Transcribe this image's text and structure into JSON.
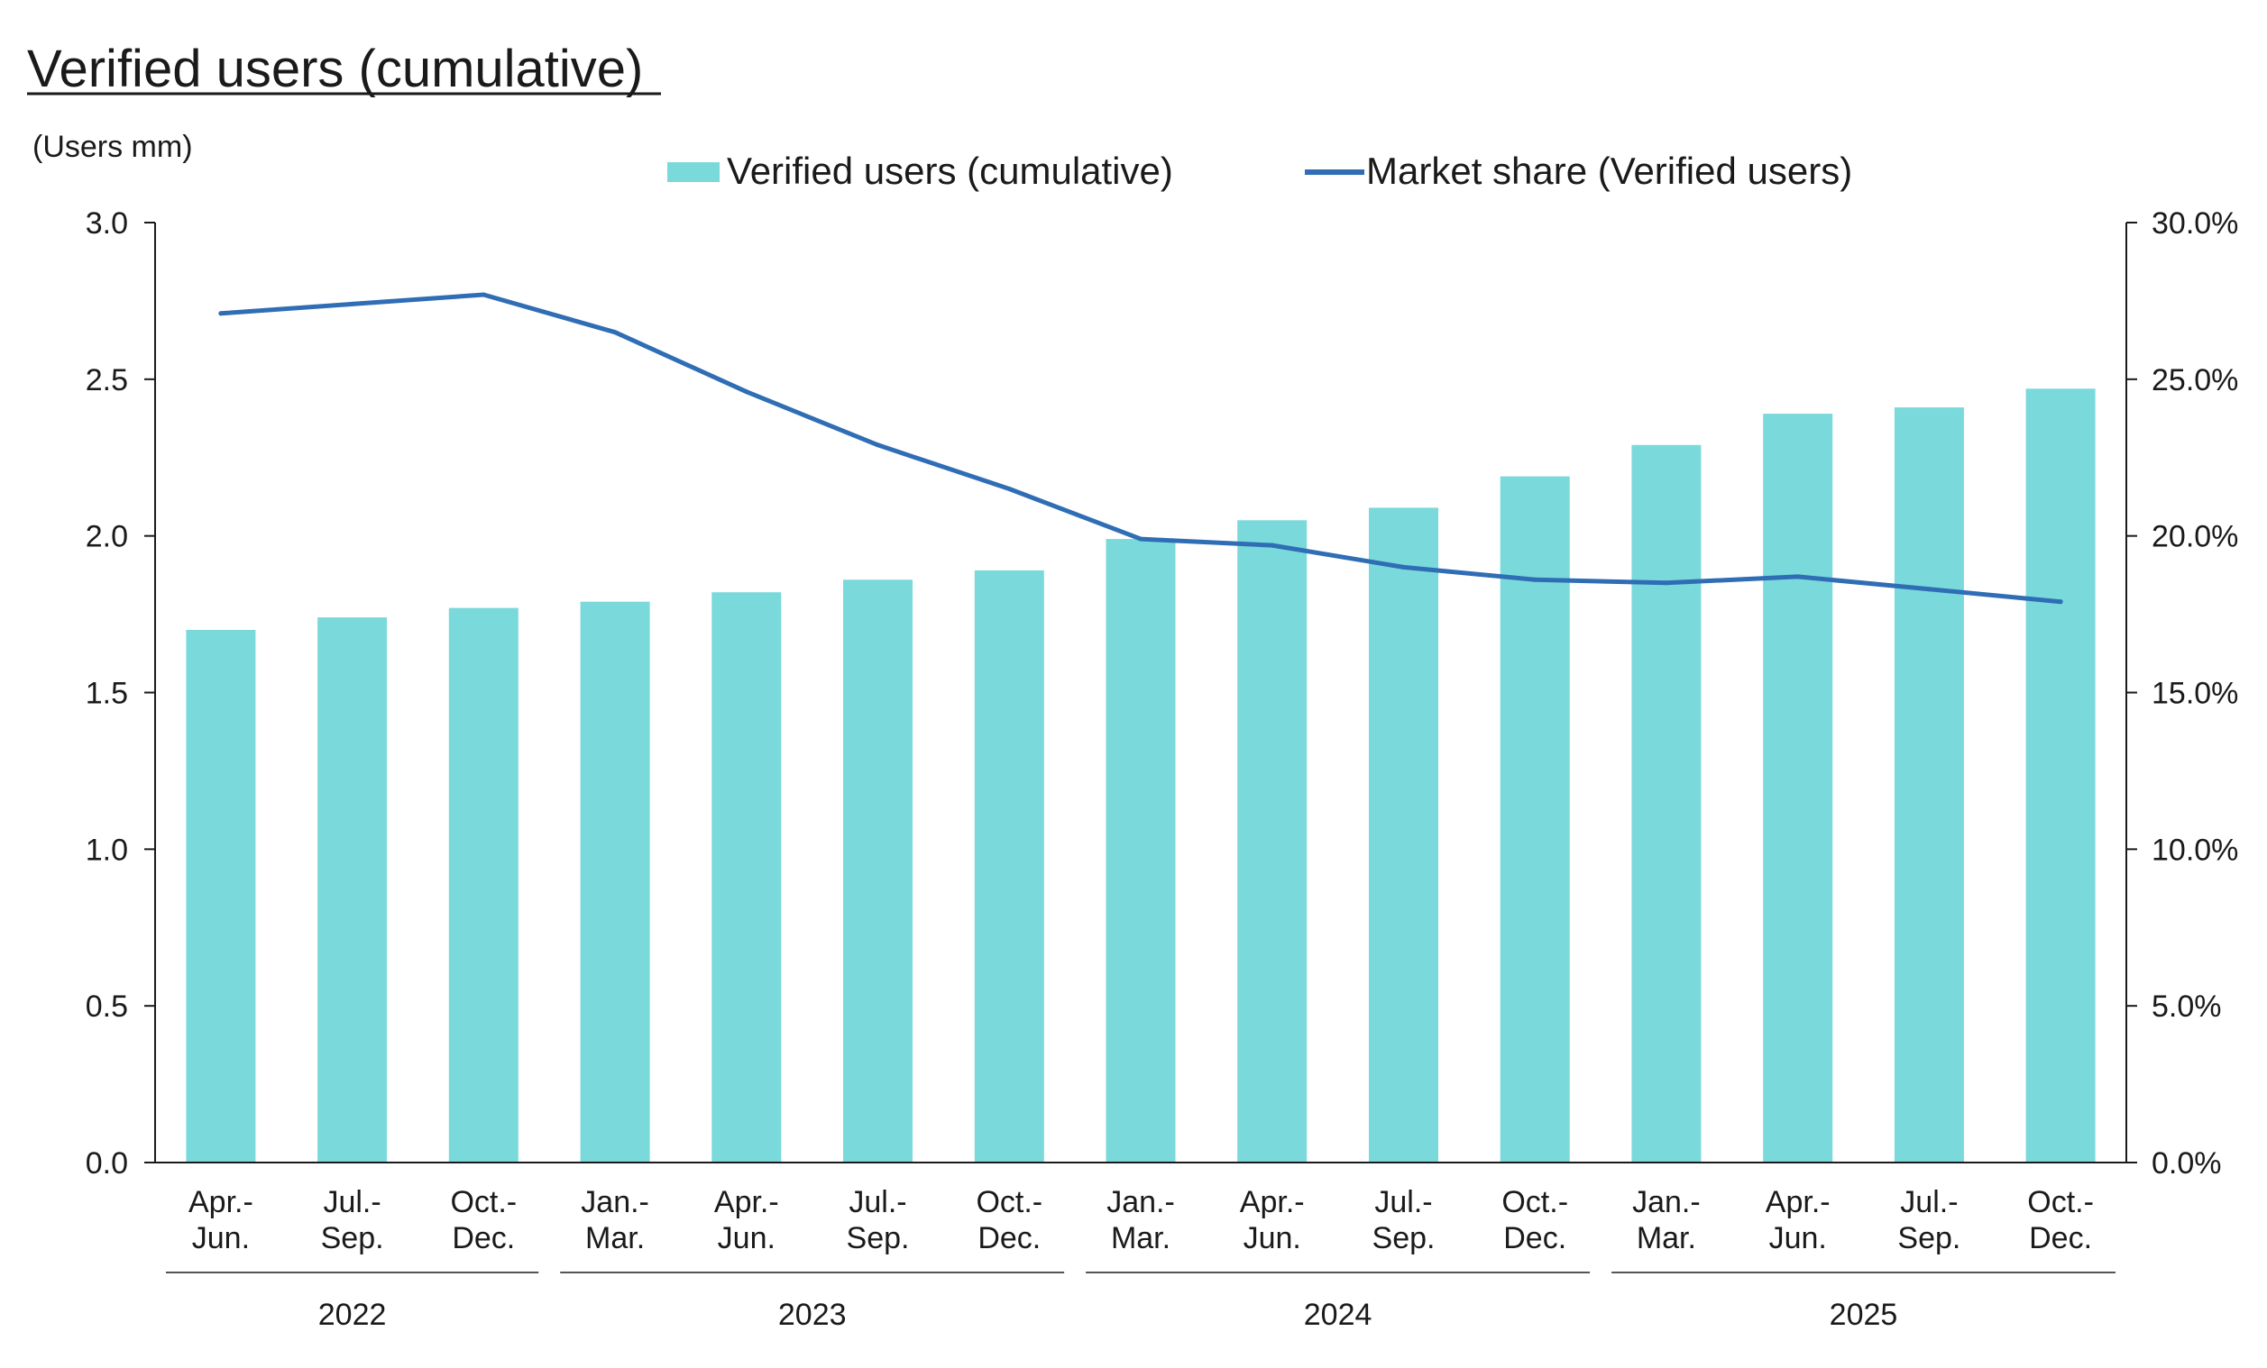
{
  "colors": {
    "bar": "#7ad9db",
    "line": "#2f6db5",
    "axis": "#1a1a1a",
    "text": "#1a1a1a"
  },
  "chart_data": {
    "type": "bar",
    "title": "Verified users (cumulative)",
    "ylabel": "(Users mm)",
    "y2label": "",
    "categories": [
      [
        "Apr.-",
        "Jun."
      ],
      [
        "Jul.-",
        "Sep."
      ],
      [
        "Oct.-",
        "Dec."
      ],
      [
        "Jan.-",
        "Mar."
      ],
      [
        "Apr.-",
        "Jun."
      ],
      [
        "Jul.-",
        "Sep."
      ],
      [
        "Oct.-",
        "Dec."
      ],
      [
        "Jan.-",
        "Mar."
      ],
      [
        "Apr.-",
        "Jun."
      ],
      [
        "Jul.-",
        "Sep."
      ],
      [
        "Oct.-",
        "Dec."
      ],
      [
        "Jan.-",
        "Mar."
      ],
      [
        "Apr.-",
        "Jun."
      ],
      [
        "Jul.-",
        "Sep."
      ],
      [
        "Oct.-",
        "Dec."
      ]
    ],
    "year_groups": [
      {
        "label": "2022",
        "start": 0,
        "end": 2
      },
      {
        "label": "2023",
        "start": 3,
        "end": 6
      },
      {
        "label": "2024",
        "start": 7,
        "end": 10
      },
      {
        "label": "2025",
        "start": 11,
        "end": 14
      }
    ],
    "ylim": [
      0,
      3.0
    ],
    "yticks": [
      "0.0",
      "0.5",
      "1.0",
      "1.5",
      "2.0",
      "2.5",
      "3.0"
    ],
    "y2lim": [
      0,
      30
    ],
    "y2ticks": [
      "0.0%",
      "5.0%",
      "10.0%",
      "15.0%",
      "20.0%",
      "25.0%",
      "30.0%"
    ],
    "legend_position": "top-center",
    "grid": false,
    "series": [
      {
        "name": "Verified users (cumulative)",
        "kind": "bar",
        "axis": "left",
        "values": [
          1.7,
          1.74,
          1.77,
          1.79,
          1.82,
          1.86,
          1.89,
          1.99,
          2.05,
          2.09,
          2.19,
          2.29,
          2.39,
          2.41,
          2.47
        ]
      },
      {
        "name": "Market share (Verified users)",
        "kind": "line",
        "axis": "right",
        "values": [
          27.1,
          27.4,
          27.7,
          26.5,
          24.6,
          22.9,
          21.5,
          19.9,
          19.7,
          19.0,
          18.6,
          18.5,
          18.7,
          18.3,
          17.9
        ]
      }
    ]
  }
}
